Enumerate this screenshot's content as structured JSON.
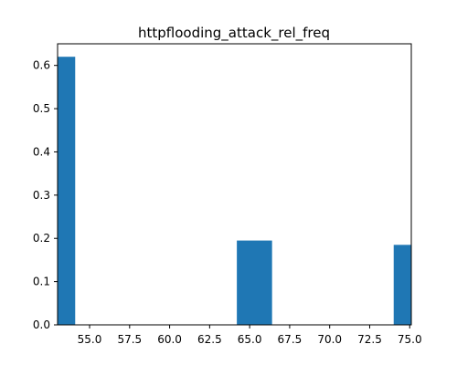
{
  "chart_data": {
    "type": "bar",
    "title": "httpflooding_attack_rel_freq",
    "xlabel": "",
    "ylabel": "",
    "xlim": [
      53.0,
      75.1
    ],
    "ylim": [
      0.0,
      0.65
    ],
    "xticks": [
      55.0,
      57.5,
      60.0,
      62.5,
      65.0,
      67.5,
      70.0,
      72.5,
      75.0
    ],
    "xtick_labels": [
      "55.0",
      "57.5",
      "60.0",
      "62.5",
      "65.0",
      "67.5",
      "70.0",
      "72.5",
      "75.0"
    ],
    "yticks": [
      0.0,
      0.1,
      0.2,
      0.3,
      0.4,
      0.5,
      0.6
    ],
    "ytick_labels": [
      "0.0",
      "0.1",
      "0.2",
      "0.3",
      "0.4",
      "0.5",
      "0.6"
    ],
    "bars": [
      {
        "x_start": 53.0,
        "x_end": 54.1,
        "value": 0.62
      },
      {
        "x_start": 64.2,
        "x_end": 66.4,
        "value": 0.195
      },
      {
        "x_start": 74.0,
        "x_end": 75.1,
        "value": 0.185
      }
    ],
    "bar_color": "#1f77b4",
    "grid": false,
    "legend": "none"
  }
}
